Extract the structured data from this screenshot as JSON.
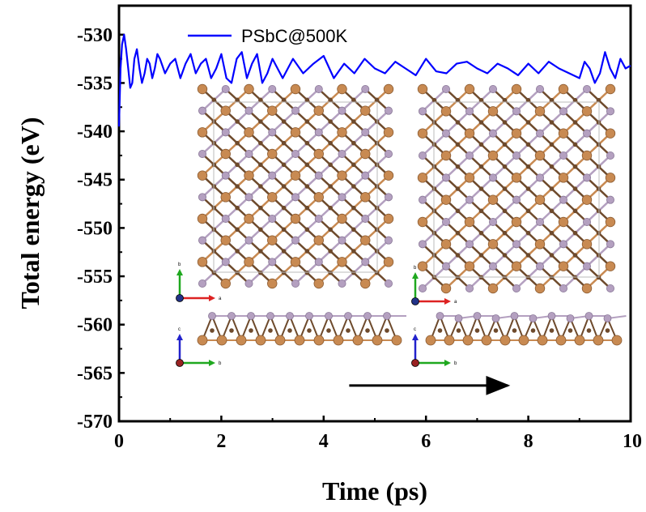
{
  "chart_data": {
    "type": "line",
    "xlabel": "Time (ps)",
    "ylabel": "Total energy (eV)",
    "xlim": [
      0,
      10
    ],
    "ylim": [
      -570,
      -527
    ],
    "xticks": [
      0,
      2,
      4,
      6,
      8,
      10
    ],
    "xtick_labels": [
      "0",
      "2",
      "4",
      "6",
      "8",
      "10"
    ],
    "yticks": [
      -530,
      -535,
      -540,
      -545,
      -550,
      -555,
      -560,
      -565,
      -570
    ],
    "ytick_labels": [
      "-530",
      "-535",
      "-540",
      "-545",
      "-550",
      "-555",
      "-560",
      "-565",
      "-570"
    ],
    "grid": false,
    "legend_position": "top-left",
    "series": [
      {
        "name": "PSbC@500K",
        "color": "#0000ff",
        "x": [
          0,
          0.03,
          0.06,
          0.1,
          0.14,
          0.18,
          0.22,
          0.26,
          0.3,
          0.35,
          0.4,
          0.45,
          0.5,
          0.55,
          0.6,
          0.65,
          0.7,
          0.75,
          0.8,
          0.9,
          1.0,
          1.1,
          1.2,
          1.3,
          1.4,
          1.5,
          1.6,
          1.7,
          1.8,
          1.9,
          2.0,
          2.1,
          2.2,
          2.3,
          2.4,
          2.5,
          2.6,
          2.7,
          2.8,
          2.9,
          3.0,
          3.2,
          3.4,
          3.6,
          3.8,
          4.0,
          4.2,
          4.4,
          4.6,
          4.8,
          5.0,
          5.2,
          5.4,
          5.6,
          5.8,
          6.0,
          6.2,
          6.4,
          6.6,
          6.8,
          7.0,
          7.2,
          7.4,
          7.6,
          7.8,
          8.0,
          8.2,
          8.4,
          8.6,
          8.8,
          9.0,
          9.1,
          9.2,
          9.3,
          9.4,
          9.5,
          9.6,
          9.7,
          9.8,
          9.9,
          10.0
        ],
        "y": [
          -539.5,
          -533.5,
          -531.0,
          -530.0,
          -531.5,
          -533.5,
          -535.5,
          -535.0,
          -532.5,
          -531.5,
          -533.5,
          -535.0,
          -534.0,
          -532.5,
          -533.0,
          -534.5,
          -533.5,
          -532.0,
          -532.5,
          -534.0,
          -533.0,
          -532.5,
          -534.5,
          -533.0,
          -532.0,
          -534.0,
          -533.0,
          -532.5,
          -534.5,
          -533.5,
          -532.0,
          -534.5,
          -535.0,
          -532.5,
          -531.8,
          -534.5,
          -533.0,
          -532.0,
          -535.0,
          -534.0,
          -532.5,
          -534.5,
          -532.5,
          -534.0,
          -533.0,
          -532.2,
          -534.5,
          -533.0,
          -534.0,
          -532.5,
          -533.5,
          -534.0,
          -532.8,
          -533.5,
          -534.2,
          -532.5,
          -533.8,
          -534.0,
          -533.0,
          -532.8,
          -533.5,
          -534.0,
          -533.0,
          -533.5,
          -534.2,
          -533.0,
          -534.0,
          -532.8,
          -533.5,
          -534.0,
          -534.5,
          -532.8,
          -533.5,
          -535.0,
          -534.0,
          -531.8,
          -533.5,
          -534.5,
          -532.5,
          -533.5,
          -533.2
        ]
      }
    ]
  },
  "arrow": {
    "from_x": 4.5,
    "to_x": 7.6,
    "y": -566.3
  },
  "insets": [
    {
      "front_axes": [
        "b",
        "a"
      ],
      "side_axes": [
        "c",
        "b"
      ],
      "colors": {
        "sb": "#b4a0c0",
        "c": "#6e4a2c",
        "p": "#c88a52",
        "cell": "#bbbbbb"
      }
    },
    {
      "front_axes": [
        "b",
        "a"
      ],
      "side_axes": [
        "c",
        "b"
      ],
      "colors": {
        "sb": "#b4a0c0",
        "c": "#6e4a2c",
        "p": "#c88a52",
        "cell": "#bbbbbb"
      }
    }
  ]
}
